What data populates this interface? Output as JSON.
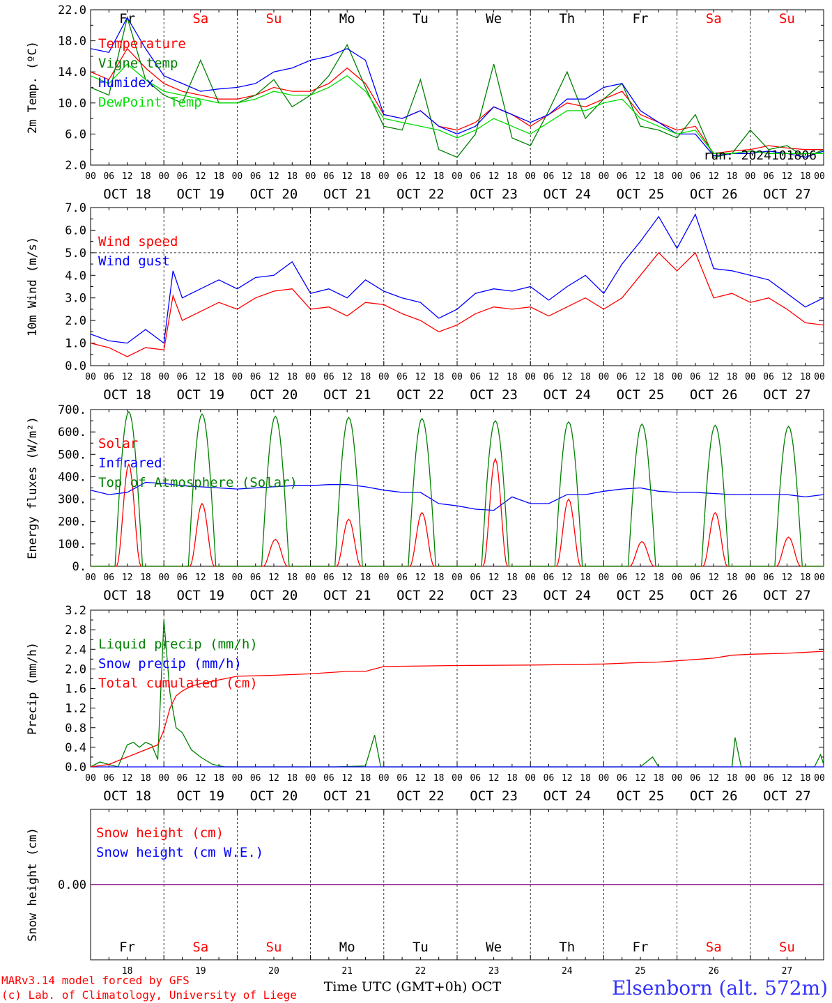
{
  "footer": {
    "model_line": "MARv3.14 model forced by GFS",
    "lab_line": "(c) Lab. of Climatology, University of Liege",
    "xlabel": "Time UTC (GMT+0h) OCT",
    "station": "Elsenborn (alt. 572m)"
  },
  "colors": {
    "red": "#ff0000",
    "dark_green": "#008000",
    "blue": "#0000ff",
    "light_green": "#00dd00",
    "purple": "#800080",
    "weekend": "#ff0000"
  },
  "days": [
    {
      "abbr": "Fr",
      "date": "OCT 18",
      "num": "18",
      "weekend": false
    },
    {
      "abbr": "Sa",
      "date": "OCT 19",
      "num": "19",
      "weekend": true
    },
    {
      "abbr": "Su",
      "date": "OCT 20",
      "num": "20",
      "weekend": true
    },
    {
      "abbr": "Mo",
      "date": "OCT 21",
      "num": "21",
      "weekend": false
    },
    {
      "abbr": "Tu",
      "date": "OCT 22",
      "num": "22",
      "weekend": false
    },
    {
      "abbr": "We",
      "date": "OCT 23",
      "num": "23",
      "weekend": false
    },
    {
      "abbr": "Th",
      "date": "OCT 24",
      "num": "24",
      "weekend": false
    },
    {
      "abbr": "Fr",
      "date": "OCT 25",
      "num": "25",
      "weekend": false
    },
    {
      "abbr": "Sa",
      "date": "OCT 26",
      "num": "26",
      "weekend": true
    },
    {
      "abbr": "Su",
      "date": "OCT 27",
      "num": "27",
      "weekend": true
    }
  ],
  "hour_ticks": [
    "00",
    "06",
    "12",
    "18"
  ],
  "end_tick": "00",
  "chart_data": [
    {
      "type": "line",
      "ylabel": "2m Temp. (ºC)",
      "ylim": [
        2.0,
        22.0
      ],
      "yticks": [
        "2.0",
        "6.0",
        "10.0",
        "14.0",
        "18.0",
        "22.0"
      ],
      "run_label": "run: 2024101806",
      "x_unit": "hours since OCT 18 00 UTC",
      "series": [
        {
          "name": "Temperature",
          "color": "#ff0000",
          "x": [
            0,
            6,
            12,
            18,
            24,
            30,
            36,
            42,
            48,
            54,
            60,
            66,
            72,
            78,
            84,
            90,
            96,
            102,
            108,
            114,
            120,
            126,
            132,
            138,
            144,
            150,
            156,
            162,
            168,
            174,
            180,
            186,
            192,
            198,
            204,
            210,
            216,
            222,
            228,
            234,
            240
          ],
          "y": [
            14.0,
            13.0,
            17.0,
            14.5,
            12.5,
            11.5,
            11.0,
            10.5,
            10.5,
            11.0,
            12.0,
            11.5,
            11.5,
            12.5,
            14.5,
            12.5,
            8.5,
            8.0,
            9.0,
            7.0,
            6.5,
            7.5,
            9.5,
            8.5,
            7.0,
            8.5,
            10.0,
            9.5,
            10.5,
            11.5,
            8.5,
            7.5,
            6.5,
            7.0,
            3.5,
            3.8,
            4.0,
            4.5,
            4.2,
            4.0,
            4.0
          ]
        },
        {
          "name": "Vigne temp",
          "color": "#008000",
          "x": [
            0,
            6,
            12,
            18,
            24,
            30,
            36,
            42,
            48,
            54,
            60,
            66,
            72,
            78,
            84,
            90,
            96,
            102,
            108,
            114,
            120,
            126,
            132,
            138,
            144,
            150,
            156,
            162,
            168,
            174,
            180,
            186,
            192,
            198,
            204,
            210,
            216,
            222,
            228,
            234,
            240
          ],
          "y": [
            12.0,
            11.0,
            21.0,
            13.0,
            11.0,
            10.0,
            15.5,
            10.0,
            10.0,
            11.0,
            13.0,
            9.5,
            11.0,
            13.5,
            17.5,
            12.0,
            7.0,
            6.5,
            13.0,
            4.0,
            3.0,
            6.0,
            15.0,
            5.5,
            4.5,
            9.0,
            14.0,
            8.0,
            10.5,
            12.5,
            7.0,
            6.5,
            5.5,
            8.5,
            3.0,
            3.5,
            6.5,
            4.0,
            4.5,
            3.0,
            4.0
          ]
        },
        {
          "name": "Humidex",
          "color": "#0000ff",
          "x": [
            0,
            6,
            12,
            18,
            24,
            30,
            36,
            42,
            48,
            54,
            60,
            66,
            72,
            78,
            84,
            90,
            96,
            102,
            108,
            114,
            120,
            126,
            132,
            138,
            144,
            150,
            156,
            162,
            168,
            174,
            180,
            186,
            192,
            198,
            204,
            210,
            216,
            222,
            228,
            234,
            240
          ],
          "y": [
            17.0,
            16.5,
            21.0,
            17.0,
            13.5,
            12.5,
            11.5,
            11.8,
            12.0,
            12.5,
            14.0,
            14.5,
            15.5,
            16.0,
            17.0,
            15.5,
            8.5,
            8.0,
            9.0,
            7.0,
            6.0,
            7.0,
            9.5,
            8.5,
            7.5,
            8.5,
            10.5,
            10.5,
            12.0,
            12.5,
            9.0,
            7.5,
            6.0,
            6.0,
            3.2,
            3.5,
            3.5,
            3.8,
            3.5,
            3.0,
            3.8
          ]
        },
        {
          "name": "DewPoint Temp",
          "color": "#00dd00",
          "x": [
            0,
            6,
            12,
            18,
            24,
            30,
            36,
            42,
            48,
            54,
            60,
            66,
            72,
            78,
            84,
            90,
            96,
            102,
            108,
            114,
            120,
            126,
            132,
            138,
            144,
            150,
            156,
            162,
            168,
            174,
            180,
            186,
            192,
            198,
            204,
            210,
            216,
            222,
            228,
            234,
            240
          ],
          "y": [
            13.5,
            12.5,
            15.0,
            13.0,
            11.5,
            11.0,
            10.5,
            10.0,
            10.0,
            10.5,
            11.5,
            11.0,
            11.0,
            12.0,
            13.5,
            11.5,
            8.0,
            7.5,
            7.0,
            6.5,
            5.5,
            6.5,
            8.0,
            7.0,
            6.0,
            7.5,
            9.0,
            9.0,
            10.0,
            10.5,
            8.0,
            7.0,
            6.0,
            6.5,
            3.5,
            3.5,
            3.8,
            3.5,
            3.5,
            3.5,
            3.5
          ]
        }
      ]
    },
    {
      "type": "line",
      "ylabel": "10m Wind (m/s)",
      "ylim": [
        0.0,
        7.0
      ],
      "yticks": [
        "0.0",
        "1.0",
        "2.0",
        "3.0",
        "4.0",
        "5.0",
        "6.0",
        "7.0"
      ],
      "ref_line": 5.0,
      "series": [
        {
          "name": "Wind speed",
          "color": "#ff0000",
          "x": [
            0,
            6,
            12,
            18,
            24,
            27,
            30,
            36,
            42,
            48,
            54,
            60,
            66,
            72,
            78,
            84,
            90,
            96,
            102,
            108,
            114,
            120,
            126,
            132,
            138,
            144,
            150,
            156,
            162,
            168,
            174,
            180,
            186,
            192,
            198,
            204,
            210,
            216,
            222,
            228,
            234,
            240
          ],
          "y": [
            1.0,
            0.8,
            0.4,
            0.8,
            0.7,
            3.1,
            2.0,
            2.4,
            2.8,
            2.5,
            3.0,
            3.3,
            3.4,
            2.5,
            2.6,
            2.2,
            2.8,
            2.7,
            2.3,
            2.0,
            1.5,
            1.8,
            2.3,
            2.6,
            2.5,
            2.6,
            2.2,
            2.6,
            3.0,
            2.5,
            3.0,
            4.0,
            5.0,
            4.2,
            5.0,
            3.0,
            3.2,
            2.8,
            3.0,
            2.5,
            1.9,
            1.8
          ]
        },
        {
          "name": "Wind gust",
          "color": "#0000ff",
          "x": [
            0,
            6,
            12,
            18,
            24,
            27,
            30,
            36,
            42,
            48,
            54,
            60,
            66,
            72,
            78,
            84,
            90,
            96,
            102,
            108,
            114,
            120,
            126,
            132,
            138,
            144,
            150,
            156,
            162,
            168,
            174,
            180,
            186,
            192,
            198,
            204,
            210,
            216,
            222,
            228,
            234,
            240
          ],
          "y": [
            1.4,
            1.1,
            1.0,
            1.6,
            1.0,
            4.2,
            3.0,
            3.4,
            3.8,
            3.4,
            3.9,
            4.0,
            4.6,
            3.2,
            3.4,
            3.0,
            3.8,
            3.3,
            3.0,
            2.8,
            2.1,
            2.5,
            3.2,
            3.4,
            3.3,
            3.5,
            2.9,
            3.5,
            4.0,
            3.2,
            4.5,
            5.5,
            6.6,
            5.2,
            6.7,
            4.3,
            4.2,
            4.0,
            3.8,
            3.2,
            2.6,
            3.0
          ]
        }
      ]
    },
    {
      "type": "line",
      "ylabel": "Energy fluxes (W/m²)",
      "ylim": [
        0,
        700
      ],
      "yticks": [
        "0.",
        "100.",
        "200.",
        "300.",
        "400.",
        "500.",
        "600.",
        "700."
      ],
      "series": [
        {
          "name": "Solar",
          "color": "#ff0000",
          "peaks": [
            455,
            280,
            120,
            210,
            240,
            480,
            300,
            110,
            240,
            130
          ],
          "shape": "bell",
          "half_width": 4
        },
        {
          "name": "Infrared",
          "color": "#0000ff",
          "x": [
            0,
            6,
            12,
            18,
            24,
            30,
            36,
            42,
            48,
            54,
            60,
            66,
            72,
            78,
            84,
            90,
            96,
            102,
            108,
            114,
            120,
            126,
            132,
            138,
            144,
            150,
            156,
            162,
            168,
            174,
            180,
            186,
            192,
            198,
            204,
            210,
            216,
            222,
            228,
            234,
            240
          ],
          "y": [
            340,
            320,
            330,
            375,
            370,
            360,
            355,
            350,
            345,
            350,
            355,
            360,
            360,
            365,
            365,
            355,
            340,
            330,
            330,
            280,
            270,
            255,
            250,
            310,
            280,
            280,
            320,
            320,
            335,
            345,
            350,
            335,
            330,
            330,
            325,
            320,
            320,
            320,
            320,
            310,
            320
          ]
        },
        {
          "name": "Top of Atmosphere (Solar)",
          "color": "#008000",
          "peaks": [
            690,
            680,
            670,
            665,
            660,
            650,
            645,
            635,
            630,
            625
          ],
          "shape": "arch",
          "half_width": 4.5
        }
      ]
    },
    {
      "type": "line",
      "ylabel": "Precip (mm/h)",
      "ylim": [
        0.0,
        3.2
      ],
      "yticks": [
        "0.0",
        "0.4",
        "0.8",
        "1.2",
        "1.6",
        "2.0",
        "2.4",
        "2.8",
        "3.2"
      ],
      "series": [
        {
          "name": "Liquid precip (mm/h)",
          "color": "#008000",
          "x": [
            0,
            3,
            6,
            9,
            12,
            14,
            16,
            18,
            20,
            22,
            24,
            26,
            28,
            30,
            33,
            36,
            40,
            44,
            60,
            80,
            90,
            93,
            95,
            98,
            120,
            160,
            180,
            184,
            186,
            190,
            210,
            211,
            213,
            216,
            237,
            239,
            240
          ],
          "y": [
            0,
            0.1,
            0.05,
            0,
            0.45,
            0.5,
            0.4,
            0.5,
            0.45,
            0.15,
            3.0,
            1.5,
            0.8,
            0.7,
            0.35,
            0.2,
            0.05,
            0,
            0,
            0,
            0.02,
            0.65,
            0,
            0,
            0,
            0,
            0,
            0.2,
            0,
            0,
            0,
            0.6,
            0,
            0,
            0,
            0.25,
            0.05
          ]
        },
        {
          "name": "Snow precip (mm/h)",
          "color": "#0000ff",
          "x": [
            0,
            240
          ],
          "y": [
            0,
            0
          ]
        },
        {
          "name": "Total cumulated (cm)",
          "color": "#ff0000",
          "x": [
            0,
            6,
            12,
            18,
            22,
            24,
            26,
            28,
            30,
            33,
            36,
            40,
            44,
            48,
            60,
            72,
            84,
            90,
            96,
            120,
            144,
            168,
            180,
            186,
            204,
            210,
            216,
            228,
            240
          ],
          "y": [
            0,
            0.05,
            0.2,
            0.35,
            0.45,
            0.75,
            1.2,
            1.45,
            1.55,
            1.65,
            1.7,
            1.75,
            1.8,
            1.85,
            1.87,
            1.9,
            1.95,
            1.95,
            2.05,
            2.07,
            2.08,
            2.1,
            2.13,
            2.14,
            2.22,
            2.28,
            2.3,
            2.32,
            2.36
          ]
        }
      ]
    },
    {
      "type": "line",
      "ylabel": "Snow height (cm)",
      "ylim": [
        -1,
        1
      ],
      "yticks": [
        "0.00"
      ],
      "series": [
        {
          "name": "Snow height (cm)",
          "color": "#ff0000",
          "x": [
            0,
            240
          ],
          "y": [
            0,
            0
          ]
        },
        {
          "name": "Snow height (cm W.E.)",
          "color": "#0000ff",
          "x": [
            0,
            240
          ],
          "y": [
            0,
            0
          ]
        }
      ]
    }
  ]
}
